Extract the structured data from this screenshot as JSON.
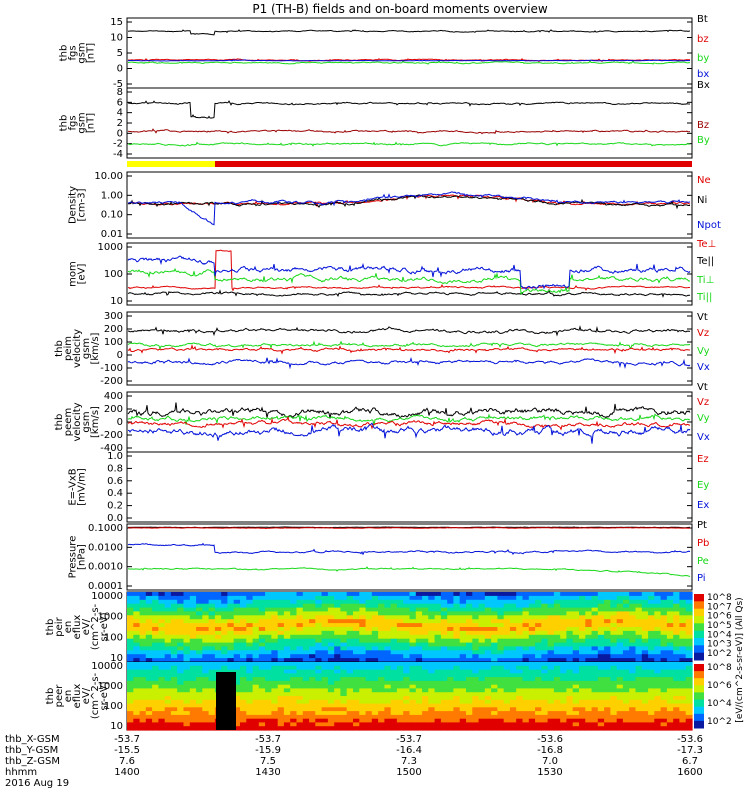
{
  "title": "P1 (TH-B) fields and on-board moments overview",
  "colors": {
    "black": "#000000",
    "red": "#e00000",
    "green": "#18d818",
    "blue": "#0010d8",
    "darkred": "#9a0000",
    "yellow": "#ffff00"
  },
  "chart_data": [
    {
      "type": "line",
      "name": "fgs-gsm",
      "ylabel": [
        "thb",
        "fgs",
        "gsm",
        "[nT]"
      ],
      "ylim": [
        -6,
        16
      ],
      "yticks": [
        "15",
        "10",
        "5",
        "0",
        "-5"
      ],
      "series": [
        {
          "name": "Bt",
          "color": "black",
          "level": 11.2
        },
        {
          "name": "bz",
          "color": "red",
          "level": 0.3
        },
        {
          "name": "by",
          "color": "green",
          "level": -0.3
        },
        {
          "name": "bx",
          "color": "blue",
          "level": 0.1
        }
      ]
    },
    {
      "type": "line",
      "name": "fgs-gsm-detail",
      "ylabel": [
        "thb",
        "fgs",
        "gsm",
        "[nT]"
      ],
      "ylim": [
        -5,
        8
      ],
      "yticks": [
        "8",
        "6",
        "4",
        "2",
        "0",
        "-2",
        "-4"
      ],
      "series": [
        {
          "name": "Bx",
          "color": "black",
          "level": 6.5
        },
        {
          "name": "Bz",
          "color": "darkred",
          "level": 1.0
        },
        {
          "name": "By",
          "color": "green",
          "level": -1.5
        }
      ]
    },
    {
      "type": "line",
      "name": "density",
      "ylabel": [
        "Density",
        "[cm-3]"
      ],
      "scale": "log",
      "ylim": [
        0.01,
        10
      ],
      "yticks": [
        "10.00",
        "1.00",
        "0.10",
        "0.01"
      ],
      "series": [
        {
          "name": "Ne",
          "color": "red"
        },
        {
          "name": "Ni",
          "color": "black"
        },
        {
          "name": "Npot",
          "color": "blue"
        }
      ]
    },
    {
      "type": "line",
      "name": "temperature",
      "ylabel": [
        "mom",
        "[eV]"
      ],
      "scale": "log",
      "ylim": [
        10,
        1000
      ],
      "yticks": [
        "1000",
        "100",
        "10"
      ],
      "series": [
        {
          "name": "Te⊥",
          "color": "red"
        },
        {
          "name": "Te||",
          "color": "black"
        },
        {
          "name": "Ti⊥",
          "color": "green"
        },
        {
          "name": "Ti||",
          "color": "green"
        }
      ]
    },
    {
      "type": "line",
      "name": "peim-velocity",
      "ylabel": [
        "thb",
        "peim",
        "velocity",
        "gsm",
        "[km/s]"
      ],
      "ylim": [
        -300,
        300
      ],
      "yticks": [
        "300",
        "200",
        "100",
        "0",
        "-100",
        "-200"
      ],
      "series": [
        {
          "name": "Vt",
          "color": "black",
          "level": 110
        },
        {
          "name": "Vz",
          "color": "red",
          "level": 0
        },
        {
          "name": "Vy",
          "color": "green",
          "level": 20
        },
        {
          "name": "Vx",
          "color": "blue",
          "level": -90
        }
      ]
    },
    {
      "type": "line",
      "name": "peem-velocity",
      "ylabel": [
        "thb",
        "peem",
        "velocity",
        "gsm",
        "[km/s]"
      ],
      "ylim": [
        -400,
        400
      ],
      "yticks": [
        "400",
        "200",
        "0",
        "-200",
        "-400"
      ],
      "series": [
        {
          "name": "Vt",
          "color": "black",
          "level": 100
        },
        {
          "name": "Vz",
          "color": "red",
          "level": -20
        },
        {
          "name": "Vy",
          "color": "green",
          "level": 30
        },
        {
          "name": "Vx",
          "color": "blue",
          "level": -80
        }
      ]
    },
    {
      "type": "line",
      "name": "efield",
      "ylabel": [
        "E=-VxB",
        "[mV/m]"
      ],
      "ylim": [
        0,
        1
      ],
      "yticks": [
        "1.0",
        "0.8",
        "0.6",
        "0.4",
        "0.2",
        "0.0"
      ],
      "series": [
        {
          "name": "Ez",
          "color": "red"
        },
        {
          "name": "Ey",
          "color": "green"
        },
        {
          "name": "Ex",
          "color": "blue"
        }
      ]
    },
    {
      "type": "line",
      "name": "pressure",
      "ylabel": [
        "Pressure",
        "[nPa]"
      ],
      "scale": "log",
      "ylim": [
        0.0001,
        0.1
      ],
      "yticks": [
        "0.1000",
        "0.0100",
        "0.0010",
        "0.0001"
      ],
      "series": [
        {
          "name": "Pt",
          "color": "black"
        },
        {
          "name": "Pb",
          "color": "red"
        },
        {
          "name": "Pe",
          "color": "green"
        },
        {
          "name": "Pi",
          "color": "blue"
        }
      ]
    },
    {
      "type": "heatmap",
      "name": "peir-spectrogram",
      "ylabel": [
        "thb",
        "peir",
        "en",
        "eflux",
        "eV/",
        "(cm^2-s-",
        "sr-eV)"
      ],
      "yticks": [
        "10000",
        "1000",
        "100",
        "10"
      ],
      "colorbar_ticks": [
        "10^8",
        "10^7",
        "10^6",
        "10^5",
        "10^4",
        "10^3",
        "10^2"
      ],
      "colorbar_label": "[eV/(cm^2-s-sr-eV)] (All Qs)"
    },
    {
      "type": "heatmap",
      "name": "peer-spectrogram",
      "ylabel": [
        "thb",
        "peer",
        "en",
        "eflux",
        "eV/",
        "(cm^2-s-",
        "sr-eV)"
      ],
      "yticks": [
        "10000",
        "1000",
        "100",
        "10"
      ],
      "colorbar_ticks": [
        "10^8",
        "10^6",
        "10^4",
        "10^2"
      ],
      "colorbar_label": "[eV/(cm^2-s-sr-eV)]"
    }
  ],
  "xaxis": {
    "rows": [
      {
        "label": "thb_X-GSM",
        "values": [
          "-53.7",
          "-53.7",
          "-53.7",
          "-53.6",
          "-53.6"
        ]
      },
      {
        "label": "thb_Y-GSM",
        "values": [
          "-15.5",
          "-15.9",
          "-16.4",
          "-16.8",
          "-17.3"
        ]
      },
      {
        "label": "thb_Z-GSM",
        "values": [
          "7.6",
          "7.5",
          "7.3",
          "7.0",
          "6.7"
        ]
      },
      {
        "label": "hhmm",
        "values": [
          "1400",
          "1430",
          "1500",
          "1530",
          "1600"
        ]
      }
    ],
    "date": "2016 Aug 19"
  }
}
